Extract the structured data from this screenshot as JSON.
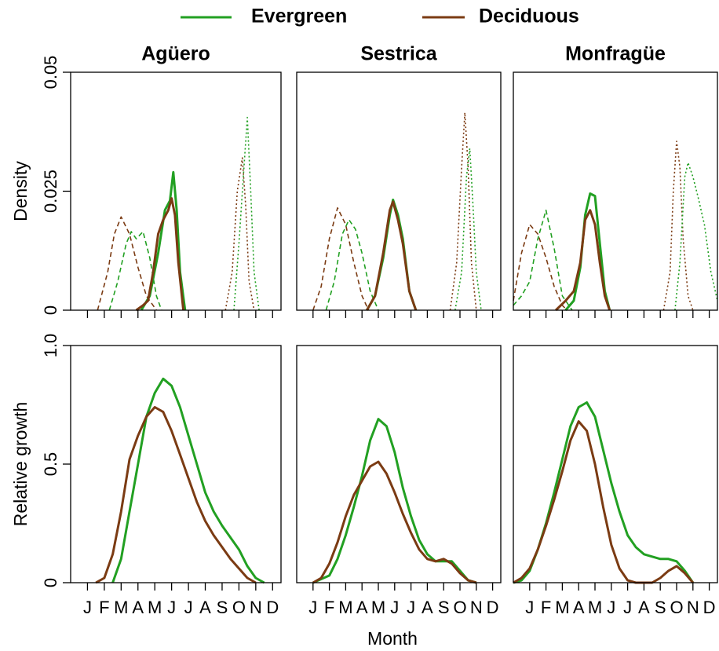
{
  "legend": [
    {
      "name": "Evergreen",
      "color": "#22a022"
    },
    {
      "name": "Deciduous",
      "color": "#7b3b13"
    }
  ],
  "x_label": "Month",
  "chart_data": [
    {
      "type": "line",
      "title": "Agüero",
      "y_label": "Density",
      "ylim": [
        0,
        0.05
      ],
      "yticks": [
        0,
        0.025,
        0.05
      ],
      "xlim": [
        0,
        12.5
      ],
      "xticks": [
        1,
        2,
        3,
        4,
        5,
        6,
        7,
        8,
        9,
        10,
        11,
        12
      ],
      "show_xtick_labels": false,
      "series": [
        {
          "group": 1,
          "dash": "dashed",
          "x": [
            1.6,
            2.2,
            2.6,
            3.0,
            3.5,
            4.0,
            4.5,
            5.1
          ],
          "values": [
            0,
            0.008,
            0.016,
            0.0196,
            0.016,
            0.009,
            0.003,
            0
          ]
        },
        {
          "group": 0,
          "dash": "dashed",
          "x": [
            2.3,
            2.8,
            3.3,
            3.6,
            3.9,
            4.3,
            4.7,
            5.1,
            5.4
          ],
          "values": [
            0,
            0.006,
            0.014,
            0.0165,
            0.015,
            0.0165,
            0.011,
            0.003,
            0
          ]
        },
        {
          "group": 0,
          "dash": "solid",
          "x": [
            4.2,
            4.7,
            5.2,
            5.6,
            5.9,
            6.1,
            6.3,
            6.5,
            6.8
          ],
          "values": [
            0,
            0.003,
            0.012,
            0.021,
            0.023,
            0.029,
            0.021,
            0.008,
            0
          ]
        },
        {
          "group": 1,
          "dash": "solid",
          "x": [
            3.9,
            4.3,
            4.6,
            4.9,
            5.2,
            5.5,
            5.8,
            6.0,
            6.2,
            6.4,
            6.7
          ],
          "values": [
            0,
            0.001,
            0.002,
            0.008,
            0.016,
            0.019,
            0.021,
            0.0235,
            0.02,
            0.01,
            0
          ]
        },
        {
          "group": 1,
          "dash": "dotted",
          "x": [
            9.2,
            9.6,
            9.9,
            10.2,
            10.4,
            10.6,
            10.9
          ],
          "values": [
            0,
            0.008,
            0.025,
            0.032,
            0.022,
            0.006,
            0
          ]
        },
        {
          "group": 0,
          "dash": "dotted",
          "x": [
            9.7,
            10.0,
            10.3,
            10.5,
            10.7,
            10.9,
            11.2
          ],
          "values": [
            0,
            0.014,
            0.03,
            0.0405,
            0.025,
            0.008,
            0
          ]
        }
      ]
    },
    {
      "type": "line",
      "title": "Sestrica",
      "ylim": [
        0,
        0.05
      ],
      "xlim": [
        0,
        12.5
      ],
      "xticks": [
        1,
        2,
        3,
        4,
        5,
        6,
        7,
        8,
        9,
        10,
        11,
        12
      ],
      "show_xtick_labels": false,
      "series": [
        {
          "group": 1,
          "dash": "dashed",
          "x": [
            1.0,
            1.5,
            2.0,
            2.5,
            3.0,
            3.5,
            4.0,
            4.4
          ],
          "values": [
            0,
            0.005,
            0.015,
            0.0215,
            0.018,
            0.01,
            0.003,
            0
          ]
        },
        {
          "group": 0,
          "dash": "dashed",
          "x": [
            1.8,
            2.3,
            2.8,
            3.2,
            3.6,
            4.0,
            4.5,
            5.0
          ],
          "values": [
            0,
            0.006,
            0.016,
            0.019,
            0.017,
            0.012,
            0.004,
            0
          ]
        },
        {
          "group": 0,
          "dash": "solid",
          "x": [
            4.3,
            4.8,
            5.3,
            5.7,
            5.9,
            6.2,
            6.5,
            6.9,
            7.3
          ],
          "values": [
            0,
            0.003,
            0.011,
            0.02,
            0.0232,
            0.02,
            0.015,
            0.004,
            0
          ]
        },
        {
          "group": 1,
          "dash": "solid",
          "x": [
            4.3,
            4.8,
            5.3,
            5.7,
            5.9,
            6.2,
            6.5,
            6.9,
            7.3
          ],
          "values": [
            0,
            0.003,
            0.012,
            0.021,
            0.0228,
            0.019,
            0.014,
            0.004,
            0
          ]
        },
        {
          "group": 1,
          "dash": "dotted",
          "x": [
            9.4,
            9.8,
            10.1,
            10.3,
            10.5,
            10.7,
            11.0
          ],
          "values": [
            0,
            0.01,
            0.03,
            0.0415,
            0.03,
            0.01,
            0
          ]
        },
        {
          "group": 0,
          "dash": "dotted",
          "x": [
            9.7,
            10.1,
            10.4,
            10.6,
            10.8,
            11.0,
            11.3
          ],
          "values": [
            0,
            0.008,
            0.028,
            0.034,
            0.022,
            0.008,
            0
          ]
        }
      ]
    },
    {
      "type": "line",
      "title": "Monfragüe",
      "ylim": [
        0,
        0.05
      ],
      "xlim": [
        0,
        12.5
      ],
      "xticks": [
        1,
        2,
        3,
        4,
        5,
        6,
        7,
        8,
        9,
        10,
        11,
        12
      ],
      "show_xtick_labels": false,
      "series": [
        {
          "group": 1,
          "dash": "dashed",
          "x": [
            0,
            0.5,
            1.0,
            1.5,
            2.0,
            2.5,
            3.0,
            3.3
          ],
          "values": [
            0.002,
            0.012,
            0.018,
            0.016,
            0.011,
            0.005,
            0.001,
            0
          ]
        },
        {
          "group": 0,
          "dash": "dashed",
          "x": [
            0,
            0.5,
            1.0,
            1.5,
            2.0,
            2.5,
            3.0,
            3.6
          ],
          "values": [
            0.001,
            0.003,
            0.006,
            0.015,
            0.021,
            0.013,
            0.003,
            0
          ]
        },
        {
          "group": 0,
          "dash": "solid",
          "x": [
            3.2,
            3.7,
            4.1,
            4.4,
            4.7,
            5.0,
            5.3,
            5.6,
            5.9
          ],
          "values": [
            0,
            0.002,
            0.009,
            0.02,
            0.0245,
            0.024,
            0.014,
            0.004,
            0
          ]
        },
        {
          "group": 1,
          "dash": "solid",
          "x": [
            2.6,
            3.2,
            3.7,
            4.1,
            4.4,
            4.7,
            5.0,
            5.3,
            5.6,
            5.9
          ],
          "values": [
            0,
            0.002,
            0.004,
            0.01,
            0.019,
            0.021,
            0.018,
            0.01,
            0.003,
            0
          ]
        },
        {
          "group": 1,
          "dash": "dotted",
          "x": [
            9.2,
            9.6,
            9.8,
            10.0,
            10.2,
            10.4,
            10.7,
            11.0
          ],
          "values": [
            0,
            0.008,
            0.025,
            0.0355,
            0.03,
            0.015,
            0.003,
            0
          ]
        },
        {
          "group": 0,
          "dash": "dotted",
          "x": [
            9.9,
            10.2,
            10.5,
            10.7,
            11.0,
            11.3,
            11.7,
            12.1,
            12.5
          ],
          "values": [
            0,
            0.01,
            0.028,
            0.031,
            0.028,
            0.024,
            0.018,
            0.008,
            0.002
          ]
        }
      ]
    },
    {
      "type": "line",
      "y_label": "Relative growth",
      "ylim": [
        0,
        1
      ],
      "yticks": [
        0,
        0.5,
        {
          "value": 1,
          "label": "1.0"
        }
      ],
      "xlim": [
        0,
        12.5
      ],
      "xticks": [
        {
          "value": 1,
          "label": "J"
        },
        {
          "value": 2,
          "label": "F"
        },
        {
          "value": 3,
          "label": "M"
        },
        {
          "value": 4,
          "label": "A"
        },
        {
          "value": 5,
          "label": "M"
        },
        {
          "value": 6,
          "label": "J"
        },
        {
          "value": 7,
          "label": "J"
        },
        {
          "value": 8,
          "label": "A"
        },
        {
          "value": 9,
          "label": "S"
        },
        {
          "value": 10,
          "label": "O"
        },
        {
          "value": 11,
          "label": "N"
        },
        {
          "value": 12,
          "label": "D"
        }
      ],
      "show_xtick_labels": true,
      "series": [
        {
          "group": 0,
          "dash": "solid",
          "x": [
            2.5,
            3,
            3.5,
            4,
            4.5,
            5,
            5.5,
            6,
            6.5,
            7,
            7.5,
            8,
            8.5,
            9,
            9.5,
            10,
            10.5,
            11,
            11.5
          ],
          "values": [
            0,
            0.1,
            0.3,
            0.5,
            0.7,
            0.8,
            0.86,
            0.83,
            0.74,
            0.62,
            0.5,
            0.38,
            0.3,
            0.24,
            0.19,
            0.14,
            0.07,
            0.02,
            0
          ]
        },
        {
          "group": 1,
          "dash": "solid",
          "x": [
            1.5,
            2,
            2.5,
            3,
            3.5,
            4,
            4.5,
            5,
            5.5,
            6,
            6.5,
            7,
            7.5,
            8,
            8.5,
            9,
            9.5,
            10,
            10.5,
            11
          ],
          "values": [
            0,
            0.02,
            0.12,
            0.3,
            0.52,
            0.62,
            0.7,
            0.74,
            0.72,
            0.64,
            0.54,
            0.44,
            0.34,
            0.26,
            0.2,
            0.15,
            0.1,
            0.06,
            0.02,
            0
          ]
        }
      ]
    },
    {
      "type": "line",
      "ylim": [
        0,
        1
      ],
      "xlim": [
        0,
        12.5
      ],
      "xticks": [
        {
          "value": 1,
          "label": "J"
        },
        {
          "value": 2,
          "label": "F"
        },
        {
          "value": 3,
          "label": "M"
        },
        {
          "value": 4,
          "label": "A"
        },
        {
          "value": 5,
          "label": "M"
        },
        {
          "value": 6,
          "label": "J"
        },
        {
          "value": 7,
          "label": "J"
        },
        {
          "value": 8,
          "label": "A"
        },
        {
          "value": 9,
          "label": "S"
        },
        {
          "value": 10,
          "label": "O"
        },
        {
          "value": 11,
          "label": "N"
        },
        {
          "value": 12,
          "label": "D"
        }
      ],
      "show_xtick_labels": true,
      "series": [
        {
          "group": 0,
          "dash": "solid",
          "x": [
            1,
            2,
            2.5,
            3,
            3.5,
            4,
            4.5,
            5,
            5.5,
            6,
            6.5,
            7,
            7.5,
            8,
            8.5,
            9,
            9.5,
            10,
            10.5,
            11
          ],
          "values": [
            0,
            0.03,
            0.1,
            0.2,
            0.32,
            0.45,
            0.6,
            0.69,
            0.66,
            0.55,
            0.4,
            0.28,
            0.18,
            0.12,
            0.09,
            0.09,
            0.09,
            0.05,
            0.01,
            0
          ]
        },
        {
          "group": 1,
          "dash": "solid",
          "x": [
            1,
            1.5,
            2,
            2.5,
            3,
            3.5,
            4,
            4.5,
            5,
            5.5,
            6,
            6.5,
            7,
            7.5,
            8,
            8.5,
            9,
            9.5,
            10,
            10.5,
            11
          ],
          "values": [
            0,
            0.02,
            0.08,
            0.17,
            0.28,
            0.37,
            0.43,
            0.49,
            0.51,
            0.46,
            0.38,
            0.29,
            0.21,
            0.14,
            0.1,
            0.09,
            0.1,
            0.08,
            0.04,
            0.01,
            0
          ]
        }
      ]
    },
    {
      "type": "line",
      "ylim": [
        0,
        1
      ],
      "xlim": [
        0,
        12.5
      ],
      "xticks": [
        {
          "value": 1,
          "label": "J"
        },
        {
          "value": 2,
          "label": "F"
        },
        {
          "value": 3,
          "label": "M"
        },
        {
          "value": 4,
          "label": "A"
        },
        {
          "value": 5,
          "label": "M"
        },
        {
          "value": 6,
          "label": "J"
        },
        {
          "value": 7,
          "label": "J"
        },
        {
          "value": 8,
          "label": "A"
        },
        {
          "value": 9,
          "label": "S"
        },
        {
          "value": 10,
          "label": "O"
        },
        {
          "value": 11,
          "label": "N"
        },
        {
          "value": 12,
          "label": "D"
        }
      ],
      "show_xtick_labels": true,
      "series": [
        {
          "group": 0,
          "dash": "solid",
          "x": [
            0,
            0.5,
            1,
            1.5,
            2,
            2.5,
            3,
            3.5,
            4,
            4.5,
            5,
            5.5,
            6,
            6.5,
            7,
            7.5,
            8,
            8.5,
            9,
            9.5,
            10,
            10.5,
            11
          ],
          "values": [
            0,
            0.01,
            0.05,
            0.14,
            0.25,
            0.38,
            0.52,
            0.66,
            0.74,
            0.76,
            0.7,
            0.56,
            0.42,
            0.3,
            0.2,
            0.15,
            0.12,
            0.11,
            0.1,
            0.1,
            0.09,
            0.05,
            0
          ]
        },
        {
          "group": 1,
          "dash": "solid",
          "x": [
            0,
            0.5,
            1,
            1.5,
            2,
            2.5,
            3,
            3.5,
            4,
            4.5,
            5,
            5.5,
            6,
            6.5,
            7,
            7.5,
            8,
            8.5,
            9,
            9.5,
            10,
            10.5,
            11
          ],
          "values": [
            0,
            0.02,
            0.06,
            0.14,
            0.24,
            0.35,
            0.47,
            0.6,
            0.68,
            0.64,
            0.5,
            0.32,
            0.16,
            0.06,
            0.01,
            0,
            0,
            0,
            0.02,
            0.05,
            0.07,
            0.04,
            0
          ]
        }
      ]
    }
  ]
}
